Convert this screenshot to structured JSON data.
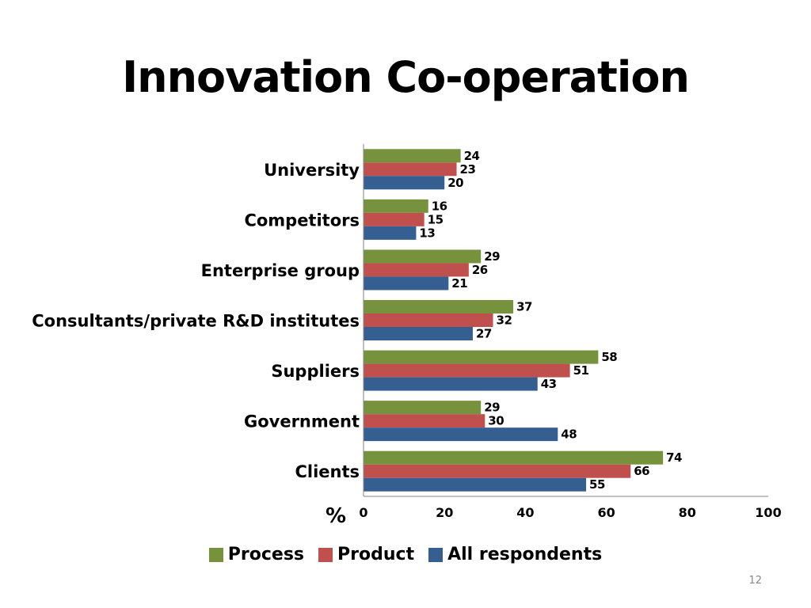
{
  "slide": {
    "title": "Innovation Co-operation",
    "page_number": "12"
  },
  "chart_data": {
    "type": "bar",
    "orientation": "horizontal",
    "categories": [
      "University",
      "Competitors",
      "Enterprise group",
      "Consultants/private R&D institutes",
      "Suppliers",
      "Government",
      "Clients"
    ],
    "series": [
      {
        "name": "Process",
        "color": "#76923C",
        "values": [
          24,
          16,
          29,
          37,
          58,
          29,
          74
        ]
      },
      {
        "name": "Product",
        "color": "#C0504D",
        "values": [
          23,
          15,
          26,
          32,
          51,
          30,
          66
        ]
      },
      {
        "name": "All respondents",
        "color": "#365F91",
        "values": [
          20,
          13,
          21,
          27,
          43,
          48,
          55
        ]
      }
    ],
    "xlim": [
      0,
      100
    ],
    "xticks": [
      0,
      20,
      40,
      60,
      80,
      100
    ],
    "xlabel": "%",
    "grid": false,
    "legend_position": "bottom",
    "data_labels": true
  }
}
